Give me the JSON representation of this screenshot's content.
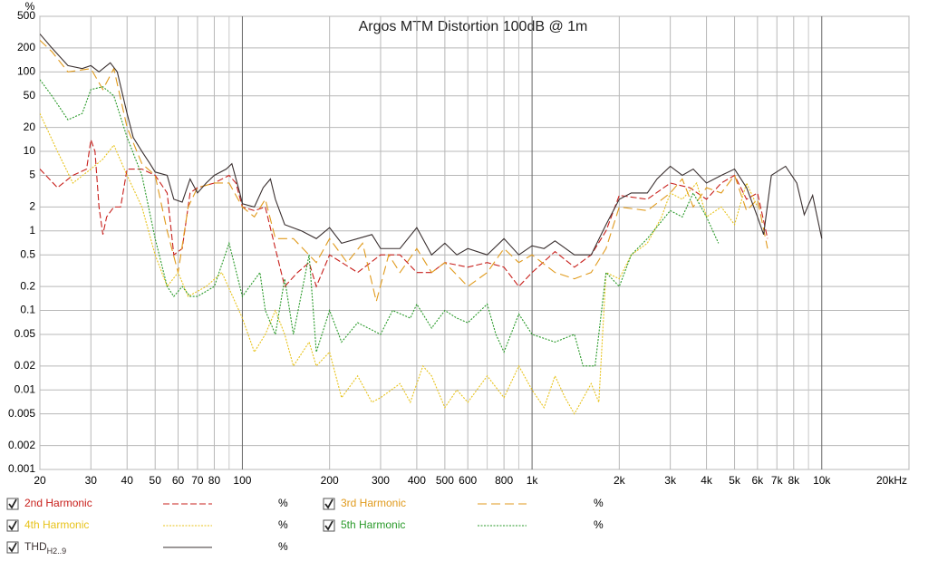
{
  "chart_data": {
    "type": "line",
    "title": "Argos MTM Distortion 100dB @ 1m",
    "y_label": "%",
    "log_x": true,
    "log_y": true,
    "grid": true,
    "xlim": [
      20,
      20000
    ],
    "ylim": [
      0.001,
      500
    ],
    "xticks": [
      20,
      30,
      40,
      50,
      60,
      70,
      80,
      100,
      200,
      300,
      400,
      500,
      600,
      800,
      {
        "value": 1000,
        "label": "1k"
      },
      {
        "value": 2000,
        "label": "2k"
      },
      {
        "value": 3000,
        "label": "3k"
      },
      {
        "value": 4000,
        "label": "4k"
      },
      {
        "value": 5000,
        "label": "5k"
      },
      {
        "value": 6000,
        "label": "6k"
      },
      {
        "value": 7000,
        "label": "7k"
      },
      {
        "value": 8000,
        "label": "8k"
      },
      {
        "value": 10000,
        "label": "10k"
      },
      {
        "value": 20000,
        "label": "20kHz"
      }
    ],
    "xminor": [
      90,
      700,
      900,
      9000
    ],
    "yticks": [
      500,
      200,
      100,
      50,
      20,
      10,
      5,
      2,
      1,
      0.5,
      0.2,
      0.1,
      0.05,
      0.02,
      0.01,
      0.005,
      0.002,
      0.001
    ],
    "series": [
      {
        "name": "2nd Harmonic",
        "unit": "%",
        "color": "#c8201c",
        "style": "dashed",
        "x": [
          20,
          23,
          26,
          29,
          30,
          31,
          32,
          33,
          34,
          36,
          38,
          40,
          45,
          50,
          55,
          58,
          62,
          66,
          70,
          80,
          90,
          95,
          100,
          110,
          120,
          130,
          140,
          155,
          170,
          180,
          200,
          250,
          300,
          350,
          400,
          450,
          500,
          600,
          700,
          800,
          900,
          1000,
          1200,
          1400,
          1600,
          1800,
          2000,
          2500,
          3000,
          3500,
          4000,
          4500,
          5000,
          5500,
          6000,
          6500
        ],
        "values": [
          6,
          3.5,
          5,
          6,
          14,
          10,
          2,
          0.9,
          1.5,
          2,
          2,
          6,
          6,
          5,
          3,
          0.5,
          0.6,
          3,
          3.5,
          4,
          5,
          4,
          2,
          1.8,
          2,
          0.6,
          0.2,
          0.3,
          0.4,
          0.2,
          0.5,
          0.3,
          0.5,
          0.5,
          0.3,
          0.3,
          0.4,
          0.35,
          0.4,
          0.35,
          0.2,
          0.3,
          0.55,
          0.35,
          0.5,
          1,
          2.8,
          2.5,
          4,
          3.5,
          2.5,
          4,
          5,
          2.5,
          3,
          0.8
        ]
      },
      {
        "name": "3rd Harmonic",
        "unit": "%",
        "color": "#e09a1c",
        "style": "longdash",
        "x": [
          20,
          22,
          25,
          30,
          33,
          36,
          40,
          45,
          50,
          55,
          60,
          65,
          70,
          80,
          90,
          100,
          110,
          120,
          130,
          150,
          180,
          200,
          230,
          260,
          290,
          320,
          350,
          400,
          450,
          500,
          600,
          700,
          800,
          900,
          1000,
          1200,
          1400,
          1600,
          1800,
          2000,
          2500,
          3000,
          3300,
          3600,
          4000,
          4500,
          5000,
          5500,
          6000,
          6500
        ],
        "values": [
          250,
          180,
          100,
          110,
          60,
          110,
          20,
          7,
          5,
          1,
          0.3,
          2,
          3.5,
          4,
          4,
          2,
          1.5,
          2.5,
          0.8,
          0.8,
          0.4,
          0.8,
          0.4,
          0.7,
          0.13,
          0.5,
          0.3,
          0.6,
          0.3,
          0.4,
          0.2,
          0.3,
          0.6,
          0.4,
          0.5,
          0.3,
          0.25,
          0.3,
          0.6,
          2,
          1.8,
          3,
          4.5,
          2,
          3.5,
          3,
          5,
          1.8,
          2.5,
          0.6
        ]
      },
      {
        "name": "4th Harmonic",
        "unit": "%",
        "color": "#e8c31c",
        "style": "dotted",
        "x": [
          20,
          23,
          26,
          30,
          33,
          36,
          40,
          45,
          50,
          55,
          60,
          65,
          75,
          85,
          100,
          110,
          120,
          130,
          140,
          150,
          170,
          180,
          200,
          220,
          250,
          280,
          300,
          350,
          380,
          420,
          450,
          500,
          550,
          600,
          700,
          800,
          900,
          1000,
          1100,
          1200,
          1300,
          1400,
          1600,
          1700,
          1800,
          2000,
          2200,
          2500,
          2800,
          3000,
          3300,
          3700,
          4000,
          4500,
          5000,
          5500,
          6000
        ],
        "values": [
          30,
          10,
          4,
          6,
          8,
          12,
          5,
          2,
          0.5,
          0.2,
          0.3,
          0.15,
          0.2,
          0.3,
          0.08,
          0.03,
          0.05,
          0.1,
          0.05,
          0.02,
          0.04,
          0.02,
          0.03,
          0.008,
          0.015,
          0.007,
          0.008,
          0.012,
          0.007,
          0.02,
          0.015,
          0.006,
          0.01,
          0.007,
          0.015,
          0.008,
          0.02,
          0.01,
          0.006,
          0.015,
          0.008,
          0.005,
          0.012,
          0.007,
          0.3,
          0.25,
          0.5,
          0.7,
          1.5,
          3,
          2.5,
          4,
          1.5,
          2,
          1.2,
          4,
          2
        ]
      },
      {
        "name": "5th Harmonic",
        "unit": "%",
        "color": "#2a9a2a",
        "style": "dotted",
        "x": [
          20,
          22,
          25,
          28,
          30,
          33,
          36,
          40,
          45,
          50,
          55,
          58,
          62,
          66,
          70,
          80,
          90,
          100,
          115,
          120,
          130,
          140,
          150,
          170,
          180,
          200,
          220,
          250,
          300,
          330,
          380,
          400,
          450,
          500,
          550,
          600,
          700,
          750,
          800,
          900,
          1000,
          1200,
          1400,
          1500,
          1650,
          1800,
          2000,
          2200,
          2500,
          3000,
          3300,
          3600,
          4000,
          4400
        ],
        "values": [
          80,
          50,
          25,
          30,
          60,
          65,
          50,
          15,
          5,
          0.8,
          0.2,
          0.15,
          0.2,
          0.15,
          0.15,
          0.2,
          0.7,
          0.15,
          0.3,
          0.1,
          0.05,
          0.25,
          0.05,
          0.5,
          0.03,
          0.1,
          0.04,
          0.07,
          0.05,
          0.1,
          0.08,
          0.12,
          0.06,
          0.1,
          0.08,
          0.07,
          0.12,
          0.05,
          0.03,
          0.09,
          0.05,
          0.04,
          0.05,
          0.02,
          0.02,
          0.3,
          0.2,
          0.5,
          0.8,
          1.8,
          1.5,
          3,
          1.5,
          0.7
        ]
      },
      {
        "name": "THD",
        "name_sub": "H2..9",
        "unit": "%",
        "color": "#3a3030",
        "style": "solid",
        "x": [
          20,
          22,
          25,
          28,
          30,
          32,
          35,
          37,
          40,
          42,
          45,
          48,
          50,
          55,
          58,
          62,
          66,
          70,
          75,
          80,
          88,
          92,
          98,
          100,
          110,
          118,
          125,
          130,
          140,
          160,
          180,
          200,
          220,
          250,
          280,
          300,
          350,
          400,
          450,
          500,
          550,
          600,
          700,
          800,
          900,
          1000,
          1100,
          1200,
          1400,
          1600,
          1800,
          2000,
          2200,
          2500,
          2700,
          3000,
          3300,
          3600,
          4000,
          4500,
          5000,
          5500,
          6000,
          6300,
          6700,
          7500,
          8200,
          8700,
          9300,
          10000
        ],
        "values": [
          300,
          200,
          120,
          110,
          120,
          100,
          130,
          100,
          30,
          15,
          10,
          7,
          5.5,
          5,
          2.5,
          2.3,
          4.5,
          3,
          4,
          5,
          6,
          7,
          3,
          2.2,
          2,
          3.5,
          4.5,
          2.5,
          1.2,
          1,
          0.8,
          1.1,
          0.7,
          0.8,
          0.9,
          0.6,
          0.6,
          1.1,
          0.5,
          0.7,
          0.5,
          0.6,
          0.5,
          0.8,
          0.5,
          0.65,
          0.6,
          0.75,
          0.5,
          0.5,
          1.2,
          2.5,
          3,
          3,
          4.5,
          6.5,
          5,
          6,
          4,
          5,
          6,
          3.5,
          1.5,
          0.9,
          5,
          6.5,
          4,
          1.6,
          2.8,
          0.8
        ]
      }
    ]
  }
}
